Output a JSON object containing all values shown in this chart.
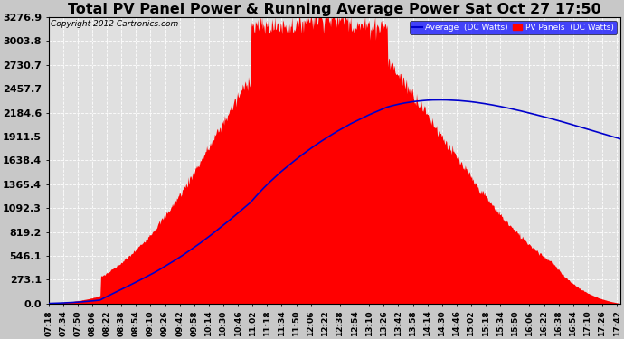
{
  "title": "Total PV Panel Power & Running Average Power Sat Oct 27 17:50",
  "copyright": "Copyright 2012 Cartronics.com",
  "legend_avg": "Average  (DC Watts)",
  "legend_pv": "PV Panels  (DC Watts)",
  "ylabel_values": [
    0.0,
    273.1,
    546.1,
    819.2,
    1092.3,
    1365.4,
    1638.4,
    1911.5,
    2184.6,
    2457.7,
    2730.7,
    3003.8,
    3276.9
  ],
  "ymax": 3276.9,
  "ymin": 0.0,
  "bg_color": "#c8c8c8",
  "plot_bg_color": "#e0e0e0",
  "grid_color": "#ffffff",
  "pv_color": "#ff0000",
  "avg_color": "#0000cc",
  "title_fontsize": 11.5,
  "tick_label_fontsize": 6.5,
  "ytick_label_fontsize": 8,
  "tick_step_minutes": 16
}
